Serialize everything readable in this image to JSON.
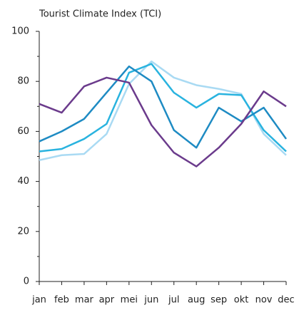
{
  "chart_data": {
    "type": "line",
    "title": "Tourist Climate Index (TCI)",
    "categories": [
      "jan",
      "feb",
      "mar",
      "apr",
      "mei",
      "jun",
      "jul",
      "aug",
      "sep",
      "okt",
      "nov",
      "dec"
    ],
    "series": [
      {
        "color": "#6b3b8c",
        "values": [
          71,
          67.5,
          78,
          81.5,
          79.5,
          62.5,
          51.5,
          46,
          53.5,
          63,
          76,
          70
        ]
      },
      {
        "color": "#1e8bc3",
        "values": [
          56,
          60,
          65,
          75.5,
          86,
          80,
          60.5,
          53.5,
          69.5,
          64,
          69.5,
          57
        ]
      },
      {
        "color": "#29b3df",
        "values": [
          52,
          53,
          57,
          63,
          83.5,
          87,
          75.5,
          69.5,
          75,
          74.5,
          60.5,
          52
        ]
      },
      {
        "color": "#a9daf3",
        "values": [
          48.5,
          50.5,
          51,
          59,
          79,
          88,
          81.5,
          78.5,
          77,
          75,
          59,
          50.5
        ]
      }
    ],
    "ylim": [
      0,
      100
    ],
    "yticks": [
      0,
      20,
      40,
      60,
      80,
      100
    ]
  }
}
